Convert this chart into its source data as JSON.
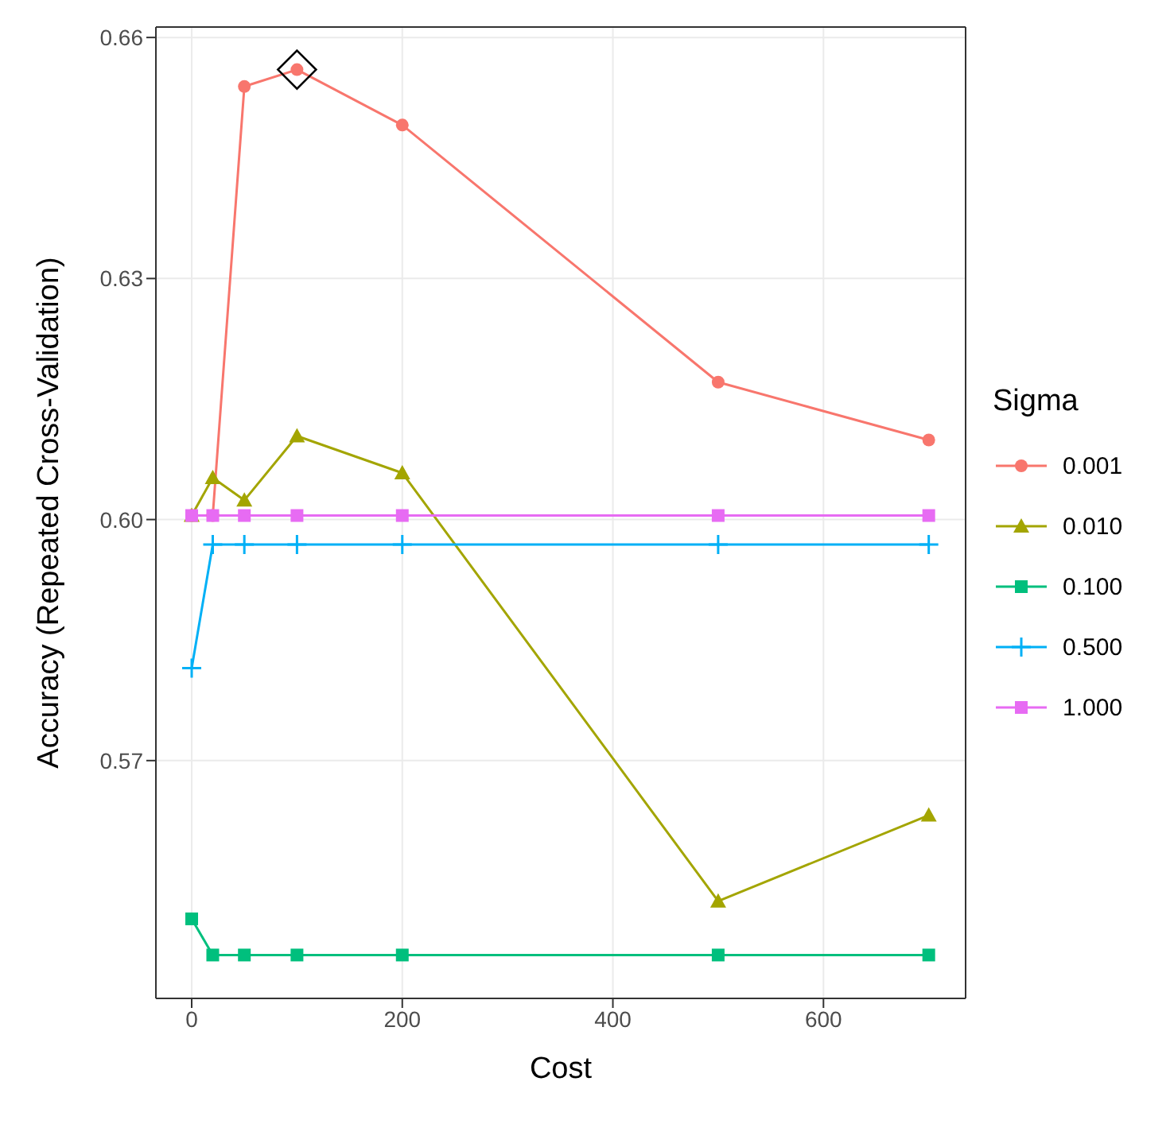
{
  "chart_data": {
    "type": "line",
    "xlabel": "Cost",
    "ylabel": "Accuracy (Repeated Cross-Validation)",
    "legend_title": "Sigma",
    "x": [
      0,
      20,
      50,
      100,
      200,
      500,
      700
    ],
    "series": [
      {
        "name": "0.001",
        "color": "#f8766d",
        "marker": "circle",
        "values": [
          0.6005,
          0.6005,
          0.6539,
          0.656,
          0.6491,
          0.6171,
          0.6099
        ]
      },
      {
        "name": "0.010",
        "color": "#a3a500",
        "marker": "triangle",
        "values": [
          0.6005,
          0.6052,
          0.6024,
          0.6104,
          0.6058,
          0.5525,
          0.5632
        ]
      },
      {
        "name": "0.100",
        "color": "#00bf7d",
        "marker": "square",
        "values": [
          0.5503,
          0.5458,
          0.5458,
          0.5458,
          0.5458,
          0.5458,
          0.5458
        ]
      },
      {
        "name": "0.500",
        "color": "#00b0f6",
        "marker": "cross",
        "values": [
          0.5815,
          0.5969,
          0.5969,
          0.5969,
          0.5969,
          0.5969,
          0.5969
        ]
      },
      {
        "name": "1.000",
        "color": "#e76bf3",
        "marker": "square",
        "values": [
          0.6005,
          0.6005,
          0.6005,
          0.6005,
          0.6005,
          0.6005,
          0.6005
        ]
      },
      {
        "type": "scatter",
        "color": "#000000",
        "marker": "diamond",
        "x": [
          100
        ],
        "values": [
          0.656
        ]
      }
    ],
    "xlim": [
      -34,
      735
    ],
    "xticks": [
      0,
      200,
      400,
      600
    ],
    "ylim": [
      0.5404,
      0.6613
    ],
    "yticks": [
      {
        "value": 0.57,
        "label": "0.57"
      },
      {
        "value": 0.6,
        "label": "0.60"
      },
      {
        "value": 0.63,
        "label": "0.63"
      },
      {
        "value": 0.66,
        "label": "0.66"
      }
    ],
    "grid": true,
    "legend": "right"
  }
}
